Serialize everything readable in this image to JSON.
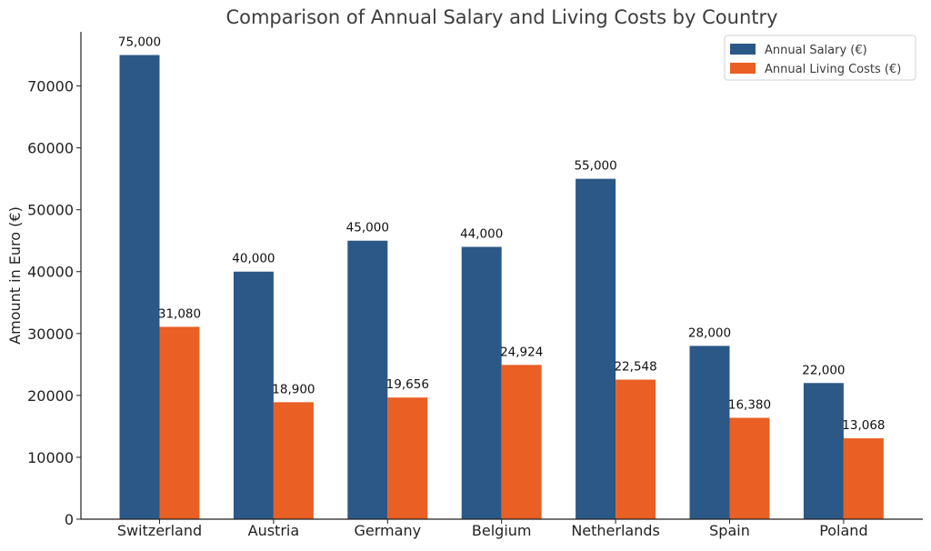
{
  "chart_data": {
    "type": "bar",
    "title": "Comparison of Annual Salary and Living Costs by Country",
    "xlabel": "",
    "ylabel": "Amount in Euro (€)",
    "categories": [
      "Switzerland",
      "Austria",
      "Germany",
      "Belgium",
      "Netherlands",
      "Spain",
      "Poland"
    ],
    "series": [
      {
        "name": "Annual Salary (€)",
        "color": "#2b5886",
        "values": [
          75000,
          40000,
          45000,
          44000,
          55000,
          28000,
          22000
        ],
        "labels": [
          "75,000",
          "40,000",
          "45,000",
          "44,000",
          "55,000",
          "28,000",
          "22,000"
        ]
      },
      {
        "name": "Annual Living Costs (€)",
        "color": "#e95f24",
        "values": [
          31080,
          18900,
          19656,
          24924,
          22548,
          16380,
          13068
        ],
        "labels": [
          "31,080",
          "18,900",
          "19,656",
          "24,924",
          "22,548",
          "16,380",
          "13,068"
        ]
      }
    ],
    "yticks": [
      0,
      10000,
      20000,
      30000,
      40000,
      50000,
      60000,
      70000
    ],
    "ylim": [
      0,
      78750
    ],
    "grid": false,
    "legend_position": "top-right"
  }
}
